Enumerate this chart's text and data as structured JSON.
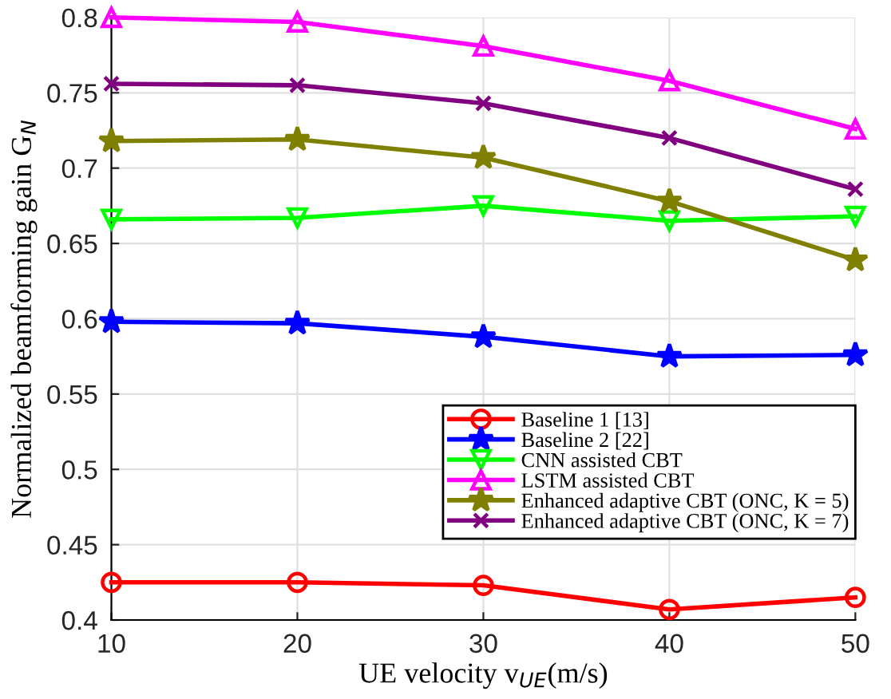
{
  "chart_data": {
    "type": "line",
    "xlabel": "UE velocity v$_{UE}$(m/s)",
    "ylabel": "Normalized beamforming gain G$_{N}$",
    "x": [
      10,
      20,
      30,
      40,
      50
    ],
    "xlim": [
      10,
      50
    ],
    "xticks": [
      10,
      20,
      30,
      40,
      50
    ],
    "ylim": [
      0.4,
      0.8
    ],
    "yticks": [
      0.4,
      0.45,
      0.5,
      0.55,
      0.6,
      0.65,
      0.7,
      0.75,
      0.8
    ],
    "grid": true,
    "legend": "bottom right",
    "line_style": "solid",
    "series": [
      {
        "name": "Baseline 1 [13]",
        "color": "#ff0000",
        "marker": "circle",
        "values": [
          0.425,
          0.425,
          0.423,
          0.407,
          0.415
        ]
      },
      {
        "name": "Baseline 2 [22]",
        "color": "#0000ff",
        "marker": "star",
        "values": [
          0.598,
          0.597,
          0.588,
          0.575,
          0.576
        ]
      },
      {
        "name": "CNN assisted CBT",
        "color": "#00ff00",
        "marker": "triangle_down",
        "values": [
          0.666,
          0.667,
          0.675,
          0.665,
          0.668
        ]
      },
      {
        "name": "LSTM assisted CBT",
        "color": "#ff00ff",
        "marker": "triangle",
        "values": [
          0.8,
          0.797,
          0.781,
          0.758,
          0.726
        ]
      },
      {
        "name": "Enhanced adaptive CBT (ONC, K = 5)",
        "color": "#808000",
        "marker": "star",
        "values": [
          0.718,
          0.719,
          0.707,
          0.678,
          0.639
        ]
      },
      {
        "name": "Enhanced adaptive CBT (ONC, K = 7)",
        "color": "#800080",
        "marker": "cross",
        "values": [
          0.756,
          0.755,
          0.743,
          0.72,
          0.686
        ]
      }
    ]
  }
}
